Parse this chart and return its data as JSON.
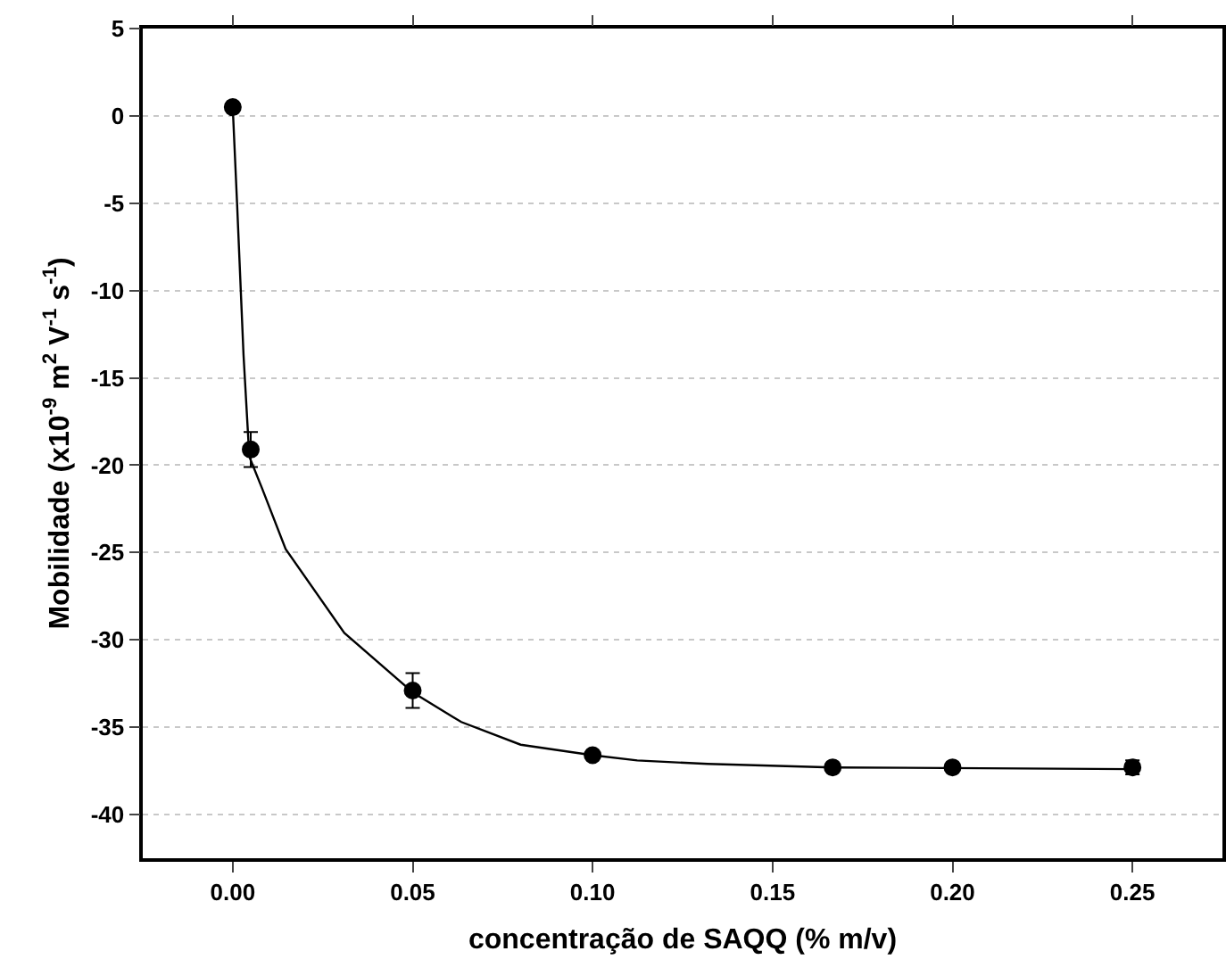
{
  "chart_data": {
    "type": "scatter",
    "xlabel": "concentração de SAQQ (% m/v)",
    "ylabel": "Mobilidade (x10$^{-9}$ m$^{2}$ V$^{-1}$ s$^{-1}$)",
    "xlim": [
      -0.025,
      0.275
    ],
    "ylim": [
      -42.5,
      5
    ],
    "xticks": [
      {
        "value": 0,
        "label": "0.00"
      },
      {
        "value": 0.05,
        "label": "0.05"
      },
      {
        "value": 0.1,
        "label": "0.10"
      },
      {
        "value": 0.15,
        "label": "0.15"
      },
      {
        "value": 0.2,
        "label": "0.20"
      },
      {
        "value": 0.25,
        "label": "0.25"
      }
    ],
    "yticks": [
      5,
      0,
      -5,
      -10,
      -15,
      -20,
      -25,
      -30,
      -35,
      -40
    ],
    "grid": "y",
    "series": [
      {
        "color": "#000000",
        "marker": "circle",
        "x": [
          0,
          0.005,
          0.05,
          0.1,
          0.1667,
          0.2,
          0.25
        ],
        "values": [
          0.5,
          -19.1,
          -32.9,
          -36.6,
          -37.3,
          -37.3,
          -37.3
        ],
        "errors": [
          null,
          1,
          1,
          null,
          null,
          null,
          0.4
        ]
      },
      {
        "type": "line",
        "color": "#000000",
        "marker": "none",
        "line_style": "solid",
        "x": [
          0,
          0.0012,
          0.003,
          0.0046,
          0.0081,
          0.0147,
          0.031,
          0.05,
          0.0635,
          0.08,
          0.1,
          0.1124,
          0.132,
          0.1667,
          0.25
        ],
        "values": [
          0.5,
          -5,
          -13.7,
          -19.5,
          -21.3,
          -24.8,
          -29.6,
          -33.0,
          -34.7,
          -36.0,
          -36.6,
          -36.9,
          -37.1,
          -37.3,
          -37.4
        ]
      }
    ]
  }
}
